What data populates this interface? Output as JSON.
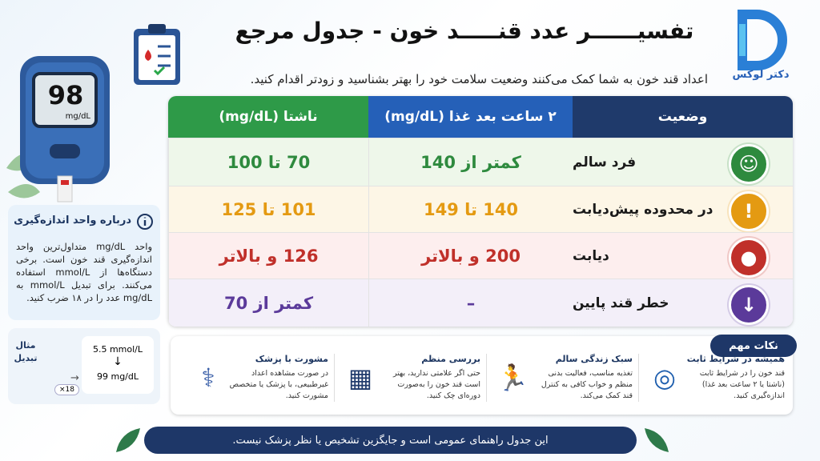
{
  "header": {
    "title": "تفسیــــــر عدد قنـــــد خون - جدول مرجع",
    "subtitle": "اعداد قند خون به شما کمک می‌کنند وضعیت سلامت خود را بهتر بشناسید و زودتر اقدام کنید.",
    "brand": "دکتر لوکس"
  },
  "meter": {
    "reading": "98",
    "unit": "mg/dL"
  },
  "table": {
    "headers": [
      "وضعیت",
      "۲ ساعت بعد غذا (mg/dL)",
      "ناشتا (mg/dL)"
    ],
    "rows": [
      [
        "فرد سالم",
        "کمتر از 140",
        "70 تا 100"
      ],
      [
        "در محدوده پیش‌دیابت",
        "140 تا 149",
        "101 تا 125"
      ],
      [
        "دیابت",
        "200 و بالاتر",
        "126 و بالاتر"
      ],
      [
        "خطر قند پایین",
        "–",
        "کمتر از 70"
      ]
    ]
  },
  "info": {
    "title": "درباره واحد اندازه‌گیری",
    "text": "واحد mg/dL متداول‌ترین واحد اندازه‌گیری قند خون است. برخی دستگاه‌ها از mmol/L استفاده می‌کنند. برای تبدیل mmol/L به mg/dL عدد را در ۱۸ ضرب کنید."
  },
  "example": {
    "label": "مثال تبدیل",
    "from": "5.5 mmol/L",
    "to": "99 mg/dL",
    "factor": "×18"
  },
  "tips": {
    "title": "نکات مهم",
    "items": [
      {
        "title": "همیشه در شرایط ثابت",
        "text": "قند خون را در شرایط ثابت (ناشتا یا ۲ ساعت بعد غذا) اندازه‌گیری کنید."
      },
      {
        "title": "سبک زندگی سالم",
        "text": "تغذیه مناسب، فعالیت بدنی منظم و خواب کافی به کنترل قند کمک می‌کند."
      },
      {
        "title": "بررسی منظم",
        "text": "حتی اگر علامتی ندارید، بهتر است قند خون را به‌صورت دوره‌ای چک کنید."
      },
      {
        "title": "مشورت با پزشک",
        "text": "در صورت مشاهده اعداد غیرطبیعی، با پزشک یا متخصص مشورت کنید."
      }
    ]
  },
  "footer": "این جدول راهنمای عمومی است و جایگزین تشخیص یا نظر پزشک نیست."
}
